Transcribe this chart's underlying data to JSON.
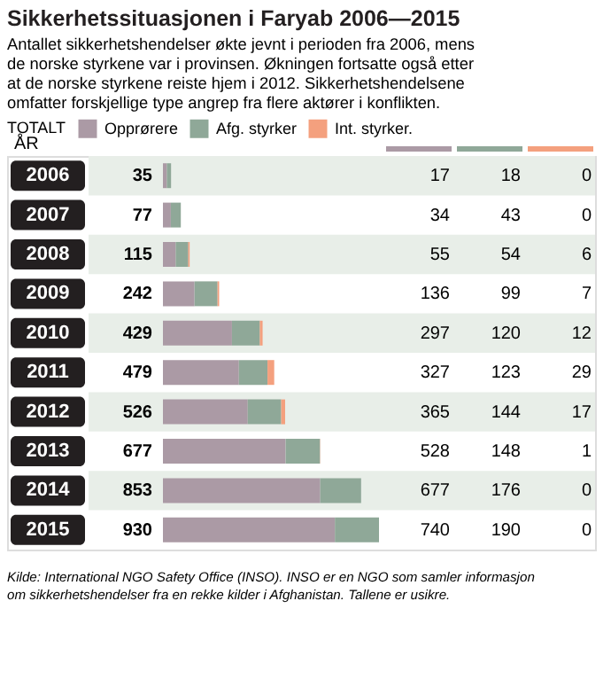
{
  "chart_data": {
    "type": "bar",
    "orientation": "horizontal",
    "stacked": true,
    "title": "Sikkerhetssituasjonen i Faryab 2006—2015",
    "subtitle": "Antallet sikkerhetshendelser økte jevnt i perioden fra 2006, mens de norske styrkene var i provinsen. Økningen fortsatte også etter at de norske styrkene reiste hjem i 2012. Sikkerhetshendelsene omfatter forskjellige type angrep fra flere aktører i konflikten.",
    "ylabel": "ÅR",
    "legend_title": "TOTALT",
    "legend": "top",
    "categories": [
      "2006",
      "2007",
      "2008",
      "2009",
      "2010",
      "2011",
      "2012",
      "2013",
      "2014",
      "2015"
    ],
    "series": [
      {
        "name": "Opprørere",
        "color": "#ab9aa5",
        "values": [
          17,
          34,
          55,
          136,
          297,
          327,
          365,
          528,
          677,
          740
        ]
      },
      {
        "name": "Afg. styrker",
        "color": "#8fa898",
        "values": [
          18,
          43,
          54,
          99,
          120,
          123,
          144,
          148,
          176,
          190
        ]
      },
      {
        "name": "Int. styrker.",
        "color": "#f4a07e",
        "values": [
          0,
          0,
          6,
          7,
          12,
          29,
          17,
          1,
          0,
          0
        ]
      }
    ],
    "totals": [
      "35",
      "77",
      "115",
      "242",
      "429",
      "479",
      "526",
      "677",
      "853",
      "930"
    ],
    "data_labels": true,
    "annotations": [
      "Kilde: International NGO Safety Office (INSO). INSO er en NGO som samler informasjon om sikkerhetshendelser fra en rekke kilder i Afghanistan. Tallene er usikre."
    ]
  }
}
